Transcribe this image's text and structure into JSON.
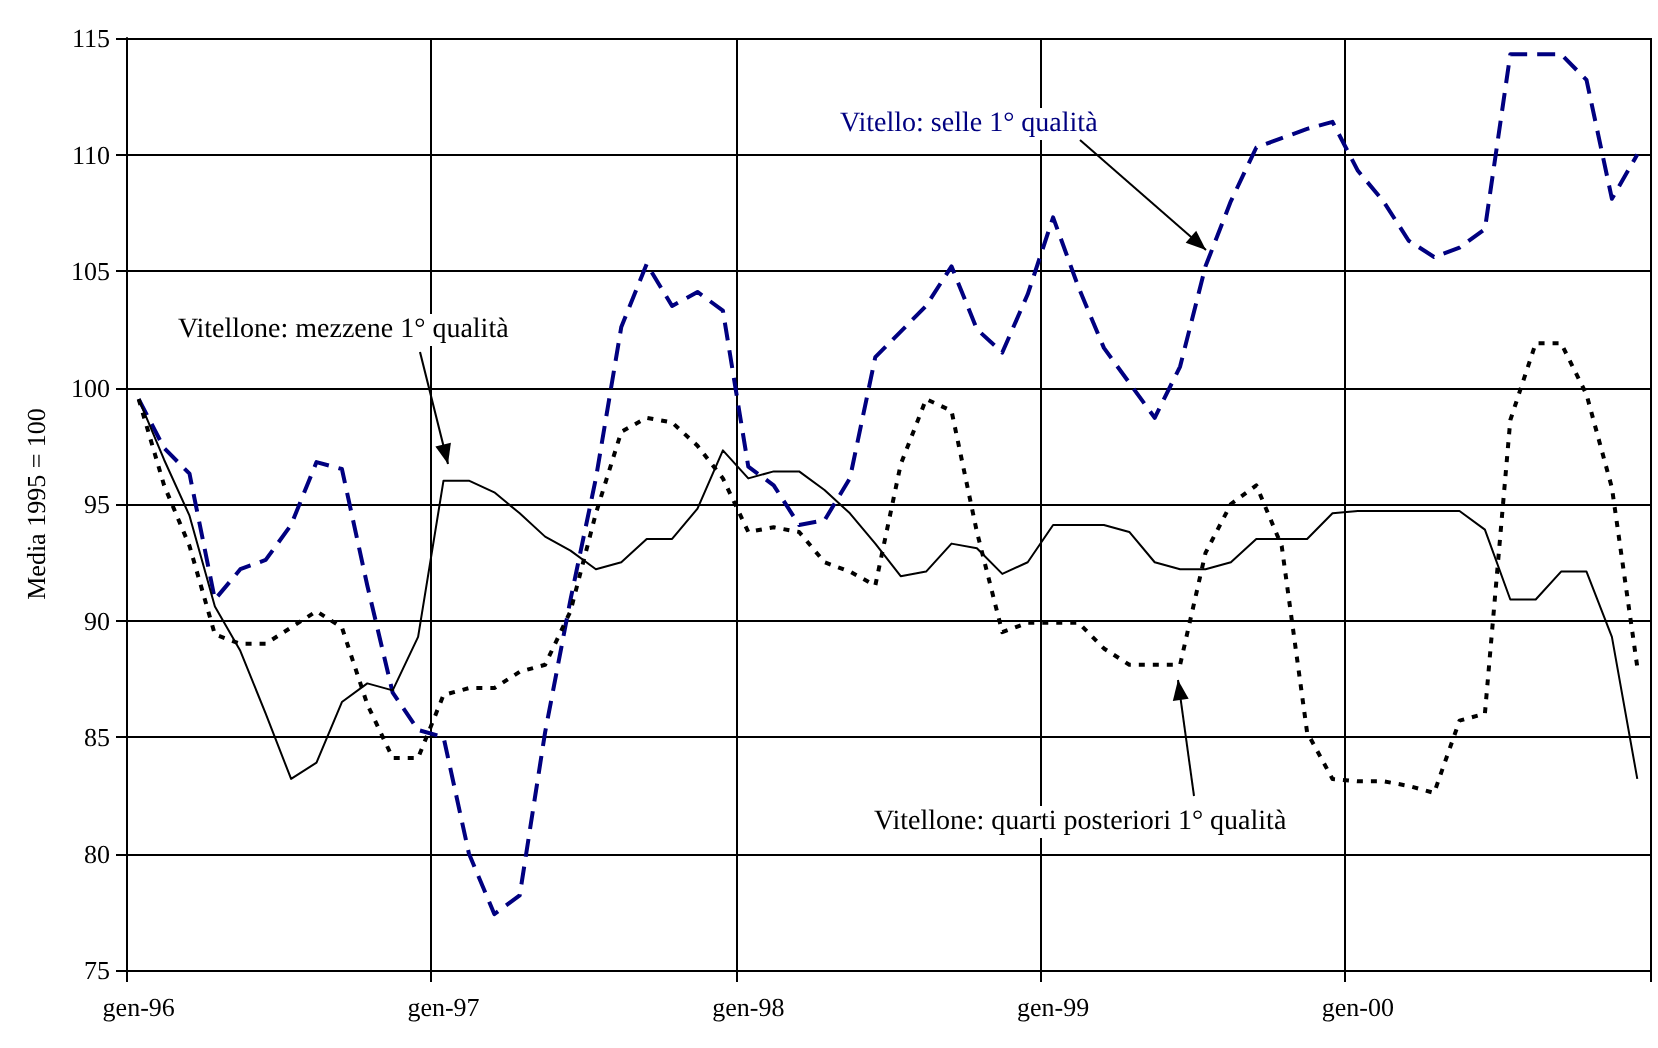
{
  "chart_data": {
    "type": "line",
    "ylabel": "Media 1995 = 100",
    "categories": [
      "gen-96",
      null,
      null,
      null,
      null,
      null,
      null,
      null,
      null,
      null,
      null,
      null,
      "gen-97",
      null,
      null,
      null,
      null,
      null,
      null,
      null,
      null,
      null,
      null,
      null,
      "gen-98",
      null,
      null,
      null,
      null,
      null,
      null,
      null,
      null,
      null,
      null,
      null,
      "gen-99",
      null,
      null,
      null,
      null,
      null,
      null,
      null,
      null,
      null,
      null,
      null,
      "gen-00",
      null,
      null,
      null,
      null,
      null,
      null,
      null,
      null,
      null,
      null,
      null
    ],
    "series": [
      {
        "name": "Vitello: selle 1° qualità",
        "color": "#000080",
        "line_style": "dashed",
        "values": [
          99.5,
          97.4,
          96.3,
          90.9,
          92.2,
          92.6,
          94.1,
          96.8,
          96.5,
          91.5,
          86.9,
          85.3,
          85.0,
          80.0,
          77.4,
          78.2,
          85.2,
          90.9,
          96.1,
          102.6,
          105.3,
          103.5,
          104.1,
          103.3,
          96.6,
          95.8,
          94.1,
          94.3,
          96.1,
          101.3,
          102.4,
          103.5,
          105.2,
          102.5,
          101.5,
          104.0,
          107.3,
          104.3,
          101.7,
          100.2,
          98.7,
          100.9,
          105.2,
          108.0,
          110.3,
          110.7,
          111.1,
          111.4,
          109.3,
          108.0,
          106.3,
          105.6,
          106.0,
          106.8,
          114.3,
          114.3,
          114.3,
          113.2,
          108.1,
          110.0
        ]
      },
      {
        "name": "Vitellone: mezzene 1° qualità",
        "color": "#000000",
        "line_style": "solid",
        "values": [
          99.5,
          96.9,
          94.5,
          90.6,
          88.7,
          86.0,
          83.2,
          83.9,
          86.5,
          87.3,
          87.0,
          89.3,
          96.0,
          96.0,
          95.5,
          94.6,
          93.6,
          93.0,
          92.2,
          92.5,
          93.5,
          93.5,
          94.8,
          97.3,
          96.1,
          96.4,
          96.4,
          95.6,
          94.6,
          93.3,
          91.9,
          92.1,
          93.3,
          93.1,
          92.0,
          92.5,
          94.1,
          94.1,
          94.1,
          93.8,
          92.5,
          92.2,
          92.2,
          92.5,
          93.5,
          93.5,
          93.5,
          94.6,
          94.7,
          94.7,
          94.7,
          94.7,
          94.7,
          93.9,
          90.9,
          90.9,
          92.1,
          92.1,
          89.3,
          83.2
        ]
      },
      {
        "name": "Vitellone: quarti posteriori 1° qualità",
        "color": "#000000",
        "line_style": "dotted",
        "values": [
          99.5,
          95.8,
          93.2,
          89.4,
          89.0,
          89.0,
          89.7,
          90.4,
          89.7,
          86.4,
          84.1,
          84.1,
          86.8,
          87.1,
          87.1,
          87.8,
          88.1,
          90.4,
          94.6,
          98.1,
          98.7,
          98.5,
          97.5,
          96.1,
          93.8,
          94.0,
          93.8,
          92.5,
          92.1,
          91.5,
          96.7,
          99.5,
          99.0,
          93.8,
          89.5,
          89.9,
          89.9,
          89.9,
          88.8,
          88.1,
          88.1,
          88.1,
          92.9,
          95.0,
          95.8,
          93.2,
          85.2,
          83.2,
          83.1,
          83.1,
          82.9,
          82.6,
          85.7,
          86.0,
          98.6,
          101.9,
          101.9,
          99.7,
          95.7,
          88.0
        ]
      }
    ],
    "ylim": [
      75,
      115
    ],
    "yticks": [
      75,
      80,
      85,
      90,
      95,
      100,
      105,
      110,
      115
    ],
    "grid": true,
    "marker": "none"
  }
}
